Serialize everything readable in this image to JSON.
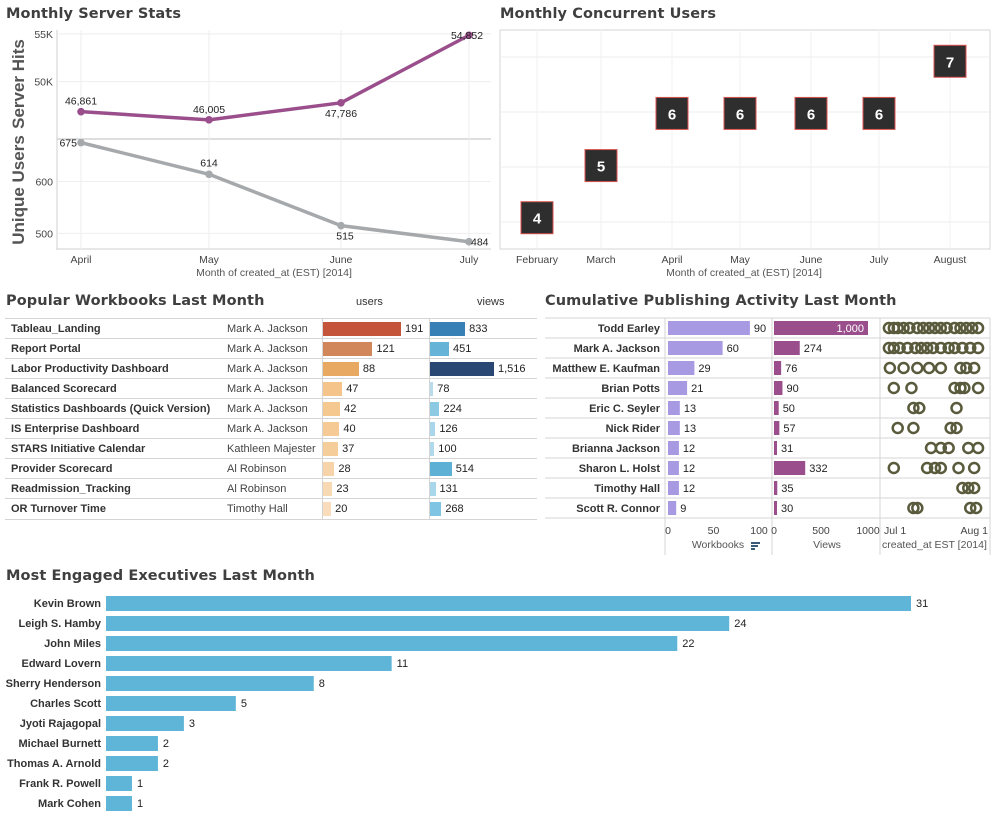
{
  "titles": {
    "server_stats": "Monthly Server Stats",
    "concurrent": "Monthly Concurrent Users",
    "workbooks": "Popular Workbooks Last Month",
    "publishing": "Cumulative Publishing Activity Last Month",
    "executives": "Most Engaged Executives Last Month"
  },
  "chart_data": [
    {
      "id": "server_hits",
      "type": "line",
      "title": "Monthly Server Stats",
      "ylabel": "Server Hits",
      "xlabel": "Month of created_at (EST) [2014]",
      "categories": [
        "April",
        "May",
        "June",
        "July"
      ],
      "values": [
        46861,
        46005,
        47786,
        54852
      ],
      "labels": [
        "46,861",
        "46,005",
        "47,786",
        "54,852"
      ],
      "yticks": [
        "50K",
        "55K"
      ],
      "ytick_values": [
        50000,
        55000
      ],
      "ylim": [
        44000,
        55400
      ],
      "color": "#9a4f8c"
    },
    {
      "id": "unique_users",
      "type": "line",
      "ylabel": "Unique Users",
      "categories": [
        "April",
        "May",
        "June",
        "July"
      ],
      "values": [
        675,
        614,
        515,
        484
      ],
      "labels": [
        "675",
        "614",
        "515",
        "484"
      ],
      "yticks": [
        "500",
        "600"
      ],
      "ytick_values": [
        500,
        600
      ],
      "ylim": [
        470,
        682
      ],
      "color": "#a6a9ac"
    },
    {
      "id": "concurrent_users",
      "type": "scatter",
      "title": "Monthly Concurrent Users",
      "xlabel": "Month of created_at (EST) [2014]",
      "categories": [
        "February",
        "March",
        "April",
        "May",
        "June",
        "July",
        "August"
      ],
      "values": [
        4,
        5,
        6,
        6,
        6,
        6,
        7
      ],
      "ylim": [
        3.4,
        7.6
      ]
    },
    {
      "id": "popular_workbooks",
      "type": "table",
      "title": "Popular Workbooks Last Month",
      "col_users": "users",
      "col_views": "views",
      "rows": [
        {
          "workbook": "Tableau_Landing",
          "author": "Mark A. Jackson",
          "users": 191,
          "views": 833,
          "users_label": "191",
          "views_label": "833",
          "users_color": "#c4553a",
          "views_color": "#3680b6"
        },
        {
          "workbook": "Report Portal",
          "author": "Mark A. Jackson",
          "users": 121,
          "views": 451,
          "users_label": "121",
          "views_label": "451",
          "users_color": "#d2875a",
          "views_color": "#65b3d6"
        },
        {
          "workbook": "Labor Productivity Dashboard",
          "author": "Mark A. Jackson",
          "users": 88,
          "views": 1516,
          "users_label": "88",
          "views_label": "1,516",
          "users_color": "#e8a963",
          "views_color": "#2a4672"
        },
        {
          "workbook": "Balanced Scorecard",
          "author": "Mark A. Jackson",
          "users": 47,
          "views": 78,
          "users_label": "47",
          "views_label": "78",
          "users_color": "#f4c48a",
          "views_color": "#b9dcec"
        },
        {
          "workbook": "Statistics Dashboards (Quick Version)",
          "author": "Mark A. Jackson",
          "users": 42,
          "views": 224,
          "users_label": "42",
          "views_label": "224",
          "users_color": "#f5c890",
          "views_color": "#8ccae4"
        },
        {
          "workbook": "IS Enterprise Dashboard",
          "author": "Mark A. Jackson",
          "users": 40,
          "views": 126,
          "users_label": "40",
          "views_label": "126",
          "users_color": "#f5ca94",
          "views_color": "#a9d6ea"
        },
        {
          "workbook": "STARS Initiative Calendar",
          "author": "Kathleen Majester",
          "users": 37,
          "views": 100,
          "users_label": "37",
          "views_label": "100",
          "users_color": "#f5cd9a",
          "views_color": "#b1d9ec"
        },
        {
          "workbook": "Provider Scorecard",
          "author": "Al Robinson",
          "users": 28,
          "views": 514,
          "users_label": "28",
          "views_label": "514",
          "users_color": "#f6d3a8",
          "views_color": "#5fb0d5"
        },
        {
          "workbook": "Readmission_Tracking",
          "author": "Al Robinson",
          "users": 23,
          "views": 131,
          "users_label": "23",
          "views_label": "131",
          "users_color": "#f7d9b4",
          "views_color": "#a8d6ea"
        },
        {
          "workbook": "OR Turnover Time",
          "author": "Timothy Hall",
          "users": 20,
          "views": 268,
          "users_label": "20",
          "views_label": "268",
          "users_color": "#f8dcbb",
          "views_color": "#7fc4e2"
        }
      ]
    },
    {
      "id": "publishing_activity",
      "type": "bar",
      "title": "Cumulative Publishing Activity Last Month",
      "rows": [
        {
          "name": "Todd Earley",
          "workbooks": 90,
          "views": 1000,
          "views_label": "1,000",
          "dots": [
            0.05,
            0.1,
            0.14,
            0.2,
            0.26,
            0.34,
            0.4,
            0.46,
            0.52,
            0.58,
            0.64,
            0.72,
            0.78,
            0.84,
            0.9,
            0.96
          ]
        },
        {
          "name": "Mark A. Jackson",
          "workbooks": 60,
          "views": 274,
          "views_label": "274",
          "dots": [
            0.05,
            0.1,
            0.16,
            0.24,
            0.32,
            0.38,
            0.44,
            0.5,
            0.58,
            0.66,
            0.72,
            0.8,
            0.88,
            0.96
          ]
        },
        {
          "name": "Matthew E. Kaufman",
          "workbooks": 29,
          "views": 76,
          "views_label": "76",
          "dots": [
            0.06,
            0.2,
            0.34,
            0.46,
            0.58,
            0.78,
            0.84,
            0.92
          ]
        },
        {
          "name": "Brian Potts",
          "workbooks": 21,
          "views": 90,
          "views_label": "90",
          "dots": [
            0.1,
            0.28,
            0.72,
            0.78,
            0.82,
            0.96
          ]
        },
        {
          "name": "Eric C. Seyler",
          "workbooks": 13,
          "views": 50,
          "views_label": "50",
          "dots": [
            0.3,
            0.36,
            0.74
          ]
        },
        {
          "name": "Nick Rider",
          "workbooks": 13,
          "views": 57,
          "views_label": "57",
          "dots": [
            0.14,
            0.3,
            0.68,
            0.74
          ]
        },
        {
          "name": "Brianna Jackson",
          "workbooks": 12,
          "views": 31,
          "views_label": "31",
          "dots": [
            0.48,
            0.58,
            0.66,
            0.86,
            0.96
          ]
        },
        {
          "name": "Sharon L. Holst",
          "workbooks": 12,
          "views": 332,
          "views_label": "332",
          "dots": [
            0.1,
            0.44,
            0.52,
            0.58,
            0.76,
            0.92
          ]
        },
        {
          "name": "Timothy Hall",
          "workbooks": 12,
          "views": 35,
          "views_label": "35",
          "dots": [
            0.8,
            0.86,
            0.92
          ]
        },
        {
          "name": "Scott R. Connor",
          "workbooks": 9,
          "views": 30,
          "views_label": "30",
          "dots": [
            0.3,
            0.34,
            0.88,
            0.94
          ]
        }
      ],
      "wb_ticks": [
        0,
        50,
        100
      ],
      "views_ticks": [
        0,
        500,
        1000
      ],
      "wb_axis_label": "Workbooks",
      "views_axis_label": "Views",
      "date_ticks": [
        "Jul 1",
        "Aug 1"
      ],
      "date_axis_label": "created_at EST [2014]",
      "wb_color": "#a899e3",
      "views_color": "#9a4f8c",
      "dot_color": "#5a5a3c"
    },
    {
      "id": "engaged_executives",
      "type": "bar",
      "title": "Most Engaged Executives Last Month",
      "categories": [
        "Kevin Brown",
        "Leigh S. Hamby",
        "John Miles",
        "Edward Lovern",
        "Sherry Henderson",
        "Charles Scott",
        "Jyoti Rajagopal",
        "Michael Burnett",
        "Thomas A. Arnold",
        "Frank R. Powell",
        "Mark Cohen"
      ],
      "values": [
        31,
        24,
        22,
        11,
        8,
        5,
        3,
        2,
        2,
        1,
        1
      ],
      "color": "#5eb5d7"
    }
  ]
}
